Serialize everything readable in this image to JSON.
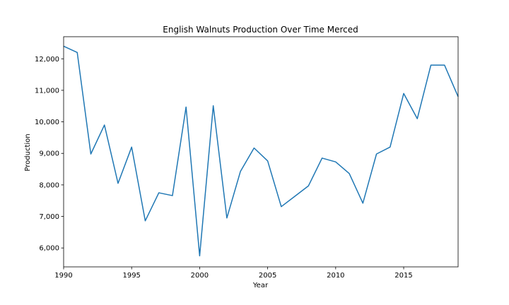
{
  "chart_data": {
    "type": "line",
    "title": "English Walnuts Production Over Time Merced",
    "xlabel": "Year",
    "ylabel": "Production",
    "xlim": [
      1990,
      2019
    ],
    "ylim": [
      5400,
      12700
    ],
    "x_ticks": [
      1990,
      1995,
      2000,
      2005,
      2010,
      2015
    ],
    "x_tick_labels": [
      "1990",
      "1995",
      "2000",
      "2005",
      "2010",
      "2015"
    ],
    "y_ticks": [
      6000,
      7000,
      8000,
      9000,
      10000,
      11000,
      12000
    ],
    "y_tick_labels": [
      "6,000",
      "7,000",
      "8,000",
      "9,000",
      "10,000",
      "11,000",
      "12,000"
    ],
    "grid": false,
    "line_color": "#1f77b4",
    "x": [
      1990,
      1991,
      1992,
      1993,
      1994,
      1995,
      1996,
      1997,
      1998,
      1999,
      2000,
      2001,
      2002,
      2003,
      2004,
      2005,
      2006,
      2007,
      2008,
      2009,
      2010,
      2011,
      2012,
      2013,
      2014,
      2015,
      2016,
      2017,
      2018,
      2019
    ],
    "series": [
      {
        "values": [
          12400,
          12200,
          8980,
          9900,
          8050,
          9200,
          6860,
          7750,
          7660,
          10470,
          5750,
          10510,
          6950,
          8430,
          9170,
          8760,
          7310,
          7640,
          7970,
          8850,
          8730,
          8360,
          7420,
          8980,
          9200,
          10900,
          10100,
          11800,
          11800,
          10800
        ]
      }
    ]
  }
}
